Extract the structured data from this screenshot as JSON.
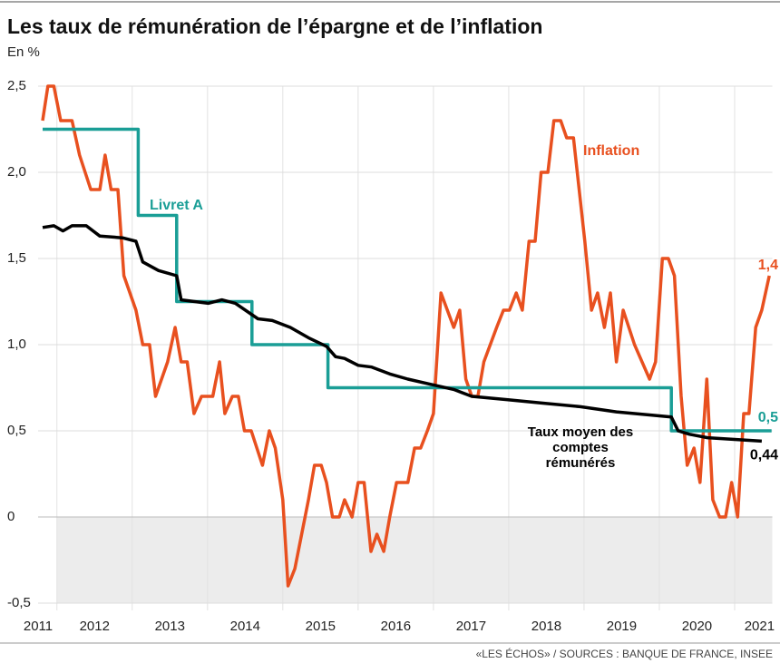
{
  "chart_data": {
    "type": "line",
    "title": "Les taux de rémunération de l’épargne et de l’inflation",
    "subtitle": "En %",
    "source": "«LES ÉCHOS» / SOURCES : BANQUE DE FRANCE, INSEE",
    "xlim": [
      2011.75,
      2021.5
    ],
    "xticks": [
      {
        "value": 2011.75,
        "label": "2011"
      },
      {
        "value": 2012.5,
        "label": "2012"
      },
      {
        "value": 2013.5,
        "label": "2013"
      },
      {
        "value": 2014.5,
        "label": "2014"
      },
      {
        "value": 2015.5,
        "label": "2015"
      },
      {
        "value": 2016.5,
        "label": "2016"
      },
      {
        "value": 2017.5,
        "label": "2017"
      },
      {
        "value": 2018.5,
        "label": "2018"
      },
      {
        "value": 2019.5,
        "label": "2019"
      },
      {
        "value": 2020.5,
        "label": "2020"
      },
      {
        "value": 2021.33,
        "label": "2021"
      }
    ],
    "xgrid": [
      2012,
      2013,
      2014,
      2015,
      2016,
      2017,
      2018,
      2019,
      2020,
      2021
    ],
    "ylim": [
      -0.5,
      2.5
    ],
    "yticks": [
      {
        "value": -0.5,
        "label": "-0,5"
      },
      0,
      {
        "value": 0.5,
        "label": "0,5"
      },
      {
        "value": 1,
        "label": "1,0"
      },
      {
        "value": 1.5,
        "label": "1,5"
      },
      {
        "value": 2,
        "label": "2,0"
      },
      {
        "value": 2.5,
        "label": "2,5"
      }
    ],
    "grid": true,
    "series": [
      {
        "name": "Inflation",
        "color": "#e8501f",
        "end_label": "1,4",
        "x": [
          2011.81,
          2011.88,
          2011.96,
          2012.05,
          2012.2,
          2012.3,
          2012.45,
          2012.57,
          2012.64,
          2012.72,
          2012.81,
          2012.89,
          2013.05,
          2013.14,
          2013.23,
          2013.31,
          2013.47,
          2013.57,
          2013.65,
          2013.73,
          2013.82,
          2013.92,
          2014.07,
          2014.16,
          2014.23,
          2014.33,
          2014.41,
          2014.49,
          2014.58,
          2014.73,
          2014.82,
          2014.9,
          2015.0,
          2015.07,
          2015.16,
          2015.34,
          2015.42,
          2015.51,
          2015.58,
          2015.66,
          2015.75,
          2015.82,
          2015.92,
          2016.0,
          2016.08,
          2016.17,
          2016.25,
          2016.34,
          2016.42,
          2016.51,
          2016.66,
          2016.75,
          2016.83,
          2016.92,
          2017.0,
          2017.1,
          2017.27,
          2017.35,
          2017.43,
          2017.51,
          2017.59,
          2017.67,
          2017.84,
          2017.93,
          2018.01,
          2018.1,
          2018.18,
          2018.27,
          2018.35,
          2018.43,
          2018.52,
          2018.6,
          2018.69,
          2018.77,
          2018.86,
          2019.01,
          2019.1,
          2019.18,
          2019.27,
          2019.35,
          2019.43,
          2019.52,
          2019.67,
          2019.87,
          2019.95,
          2020.04,
          2020.12,
          2020.2,
          2020.29,
          2020.37,
          2020.46,
          2020.54,
          2020.63,
          2020.71,
          2020.8,
          2020.88,
          2020.96,
          2021.04,
          2021.12,
          2021.19,
          2021.28,
          2021.36,
          2021.46
        ],
        "values": [
          2.3,
          2.5,
          2.5,
          2.3,
          2.3,
          2.1,
          1.9,
          1.9,
          2.1,
          1.9,
          1.9,
          1.4,
          1.2,
          1.0,
          1.0,
          0.7,
          0.9,
          1.1,
          0.9,
          0.9,
          0.6,
          0.7,
          0.7,
          0.9,
          0.6,
          0.7,
          0.7,
          0.5,
          0.5,
          0.3,
          0.5,
          0.4,
          0.1,
          -0.4,
          -0.3,
          0.1,
          0.3,
          0.3,
          0.2,
          0.0,
          0.0,
          0.1,
          0.0,
          0.2,
          0.2,
          -0.2,
          -0.1,
          -0.2,
          0.0,
          0.2,
          0.2,
          0.4,
          0.4,
          0.5,
          0.6,
          1.3,
          1.1,
          1.2,
          0.8,
          0.7,
          0.7,
          0.9,
          1.1,
          1.2,
          1.2,
          1.3,
          1.2,
          1.6,
          1.6,
          2.0,
          2.0,
          2.3,
          2.3,
          2.2,
          2.2,
          1.6,
          1.2,
          1.3,
          1.1,
          1.3,
          0.9,
          1.2,
          1.0,
          0.8,
          0.9,
          1.5,
          1.5,
          1.4,
          0.7,
          0.3,
          0.4,
          0.2,
          0.8,
          0.1,
          0.0,
          0.0,
          0.2,
          0.0,
          0.6,
          0.6,
          1.1,
          1.2,
          1.4
        ]
      },
      {
        "name": "Livret A",
        "color": "#1a9e96",
        "end_label": "0,5",
        "x": [
          2011.81,
          2013.08,
          2013.08,
          2013.59,
          2013.59,
          2014.59,
          2014.59,
          2015.6,
          2015.6,
          2020.16,
          2020.16,
          2021.49
        ],
        "values": [
          2.25,
          2.25,
          1.75,
          1.75,
          1.25,
          1.25,
          1.0,
          1.0,
          0.75,
          0.75,
          0.5,
          0.5
        ]
      },
      {
        "name": "Taux moyen des comptes rémunérés",
        "color": "#000000",
        "end_label": "0,44",
        "x": [
          2011.81,
          2011.96,
          2012.08,
          2012.2,
          2012.39,
          2012.57,
          2012.87,
          2013.05,
          2013.14,
          2013.35,
          2013.59,
          2013.65,
          2014.01,
          2014.19,
          2014.37,
          2014.67,
          2014.86,
          2015.1,
          2015.34,
          2015.58,
          2015.7,
          2015.82,
          2016.0,
          2016.18,
          2016.42,
          2016.66,
          2016.96,
          2017.27,
          2017.51,
          2017.99,
          2018.47,
          2018.95,
          2019.43,
          2019.92,
          2020.16,
          2020.25,
          2020.4,
          2020.64,
          2021.0,
          2021.36
        ],
        "values": [
          1.68,
          1.69,
          1.66,
          1.69,
          1.69,
          1.63,
          1.62,
          1.6,
          1.48,
          1.43,
          1.4,
          1.26,
          1.24,
          1.26,
          1.24,
          1.15,
          1.14,
          1.1,
          1.04,
          0.99,
          0.93,
          0.92,
          0.88,
          0.87,
          0.83,
          0.8,
          0.77,
          0.74,
          0.7,
          0.68,
          0.66,
          0.64,
          0.61,
          0.59,
          0.58,
          0.5,
          0.48,
          0.46,
          0.45,
          0.44
        ]
      }
    ]
  }
}
